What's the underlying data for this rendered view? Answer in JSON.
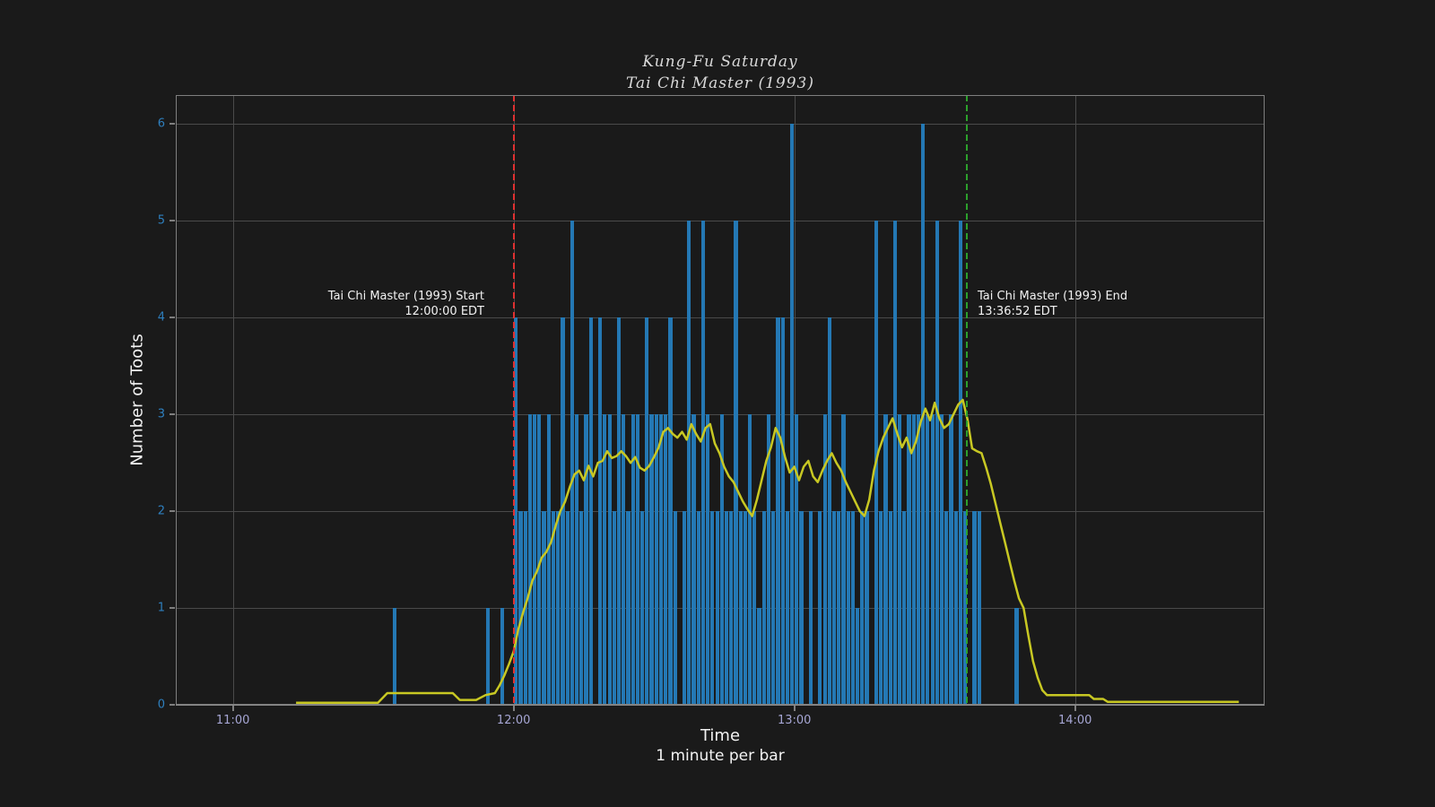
{
  "figure": {
    "title_line1": "Kung-Fu Saturday",
    "title_line2": "Tai Chi Master (1993)",
    "background": "#1a1a1a"
  },
  "colors": {
    "background": "#1a1a1a",
    "bar": "#2478b4",
    "avg_line": "#c8c823",
    "grid": "#4a4a4a",
    "spine": "#7f7f7f",
    "ytick": "#2e7fbe",
    "xtick": "#a6a6d4",
    "text": "#f2f2f2",
    "start_marker": "#e03131",
    "end_marker": "#2ca02c"
  },
  "chart_data": {
    "type": "bar",
    "title": "Kung-Fu Saturday\nTai Chi Master (1993)",
    "xlabel": "Time",
    "xlabel_sub": "1 minute per bar",
    "ylabel": "Number of Toots",
    "grid": true,
    "ylim": [
      0,
      6.3
    ],
    "y_ticks": [
      0,
      1,
      2,
      3,
      4,
      5,
      6
    ],
    "xlim_minutes_from_11": [
      -12.2,
      220.5
    ],
    "x_ticks": [
      {
        "minute": 0,
        "label": "11:00"
      },
      {
        "minute": 60,
        "label": "12:00"
      },
      {
        "minute": 120,
        "label": "13:00"
      },
      {
        "minute": 180,
        "label": "14:00"
      }
    ],
    "bars": {
      "name": "toots-per-minute",
      "interval_minutes": 1,
      "start_minute_from_11": 30,
      "start_time": "11:30",
      "values": [
        0,
        0,
        0,
        0,
        1,
        0,
        0,
        0,
        0,
        0,
        0,
        0,
        0,
        0,
        0,
        0,
        0,
        0,
        0,
        0,
        0,
        0,
        0,
        0,
        1,
        0,
        0,
        1,
        0,
        0,
        4,
        2,
        2,
        3,
        3,
        3,
        2,
        3,
        2,
        2,
        4,
        2,
        5,
        3,
        2,
        3,
        4,
        0,
        4,
        3,
        3,
        2,
        4,
        3,
        2,
        3,
        3,
        2,
        4,
        3,
        3,
        3,
        3,
        4,
        2,
        0,
        2,
        5,
        3,
        2,
        5,
        3,
        2,
        2,
        3,
        2,
        2,
        5,
        2,
        2,
        3,
        2,
        1,
        2,
        3,
        2,
        4,
        4,
        2,
        6,
        3,
        2,
        0,
        2,
        0,
        2,
        3,
        4,
        2,
        2,
        3,
        2,
        2,
        1,
        2,
        2,
        0,
        5,
        2,
        3,
        2,
        5,
        3,
        2,
        3,
        3,
        3,
        6,
        3,
        3,
        5,
        3,
        2,
        3,
        2,
        5,
        2,
        0,
        2,
        2,
        0,
        0,
        0,
        0,
        0,
        0,
        0,
        1
      ]
    },
    "avg_line": {
      "name": "rolling-average",
      "points_minute_value": [
        [
          13.5,
          0.02
        ],
        [
          31,
          0.02
        ],
        [
          33,
          0.12
        ],
        [
          47,
          0.12
        ],
        [
          48.5,
          0.05
        ],
        [
          52,
          0.05
        ],
        [
          54,
          0.1
        ],
        [
          56,
          0.12
        ],
        [
          57,
          0.2
        ],
        [
          58,
          0.3
        ],
        [
          59,
          0.42
        ],
        [
          60,
          0.55
        ],
        [
          61,
          0.78
        ],
        [
          62,
          0.95
        ],
        [
          63,
          1.1
        ],
        [
          64,
          1.28
        ],
        [
          65,
          1.38
        ],
        [
          66,
          1.52
        ],
        [
          67,
          1.58
        ],
        [
          68,
          1.68
        ],
        [
          69,
          1.85
        ],
        [
          70,
          2.0
        ],
        [
          71,
          2.1
        ],
        [
          72,
          2.25
        ],
        [
          73,
          2.38
        ],
        [
          74,
          2.42
        ],
        [
          75,
          2.32
        ],
        [
          76,
          2.47
        ],
        [
          77,
          2.36
        ],
        [
          78,
          2.5
        ],
        [
          79,
          2.52
        ],
        [
          80,
          2.62
        ],
        [
          81,
          2.55
        ],
        [
          82,
          2.57
        ],
        [
          83,
          2.62
        ],
        [
          84,
          2.57
        ],
        [
          85,
          2.5
        ],
        [
          86,
          2.56
        ],
        [
          87,
          2.45
        ],
        [
          88,
          2.42
        ],
        [
          89,
          2.47
        ],
        [
          90,
          2.56
        ],
        [
          91,
          2.66
        ],
        [
          92,
          2.82
        ],
        [
          93,
          2.86
        ],
        [
          94,
          2.8
        ],
        [
          95,
          2.76
        ],
        [
          96,
          2.82
        ],
        [
          97,
          2.74
        ],
        [
          98,
          2.9
        ],
        [
          99,
          2.8
        ],
        [
          100,
          2.72
        ],
        [
          101,
          2.86
        ],
        [
          102,
          2.9
        ],
        [
          103,
          2.7
        ],
        [
          104,
          2.6
        ],
        [
          105,
          2.46
        ],
        [
          106,
          2.36
        ],
        [
          107,
          2.3
        ],
        [
          108,
          2.2
        ],
        [
          109,
          2.1
        ],
        [
          110,
          2.02
        ],
        [
          111,
          1.95
        ],
        [
          112,
          2.12
        ],
        [
          113,
          2.32
        ],
        [
          114,
          2.52
        ],
        [
          115,
          2.66
        ],
        [
          116,
          2.86
        ],
        [
          117,
          2.76
        ],
        [
          118,
          2.56
        ],
        [
          119,
          2.4
        ],
        [
          120,
          2.46
        ],
        [
          121,
          2.32
        ],
        [
          122,
          2.46
        ],
        [
          123,
          2.52
        ],
        [
          124,
          2.36
        ],
        [
          125,
          2.3
        ],
        [
          126,
          2.42
        ],
        [
          127,
          2.52
        ],
        [
          128,
          2.6
        ],
        [
          129,
          2.5
        ],
        [
          130,
          2.42
        ],
        [
          131,
          2.3
        ],
        [
          132,
          2.2
        ],
        [
          133,
          2.1
        ],
        [
          134,
          2.0
        ],
        [
          135,
          1.95
        ],
        [
          136,
          2.12
        ],
        [
          137,
          2.42
        ],
        [
          138,
          2.62
        ],
        [
          139,
          2.76
        ],
        [
          140,
          2.86
        ],
        [
          141,
          2.96
        ],
        [
          142,
          2.8
        ],
        [
          143,
          2.66
        ],
        [
          144,
          2.76
        ],
        [
          145,
          2.6
        ],
        [
          146,
          2.72
        ],
        [
          147,
          2.92
        ],
        [
          148,
          3.06
        ],
        [
          149,
          2.94
        ],
        [
          150,
          3.12
        ],
        [
          151,
          2.96
        ],
        [
          152,
          2.86
        ],
        [
          153,
          2.9
        ],
        [
          154,
          3.0
        ],
        [
          155,
          3.1
        ],
        [
          156,
          3.15
        ],
        [
          157,
          2.95
        ],
        [
          158,
          2.65
        ],
        [
          159,
          2.62
        ],
        [
          160,
          2.6
        ],
        [
          161,
          2.45
        ],
        [
          162,
          2.28
        ],
        [
          163,
          2.08
        ],
        [
          164,
          1.88
        ],
        [
          165,
          1.68
        ],
        [
          166,
          1.48
        ],
        [
          167,
          1.28
        ],
        [
          168,
          1.1
        ],
        [
          169,
          1.0
        ],
        [
          170,
          0.72
        ],
        [
          171,
          0.45
        ],
        [
          172,
          0.28
        ],
        [
          173,
          0.15
        ],
        [
          174,
          0.1
        ],
        [
          183,
          0.1
        ],
        [
          184,
          0.06
        ],
        [
          186,
          0.06
        ],
        [
          187,
          0.03
        ],
        [
          215,
          0.03
        ]
      ]
    },
    "markers": [
      {
        "name": "start",
        "label_line1": "Tai Chi Master (1993) Start",
        "label_line2": "12:00:00 EDT",
        "minute_from_11": 60,
        "time": "12:00:00 EDT",
        "color": "#e03131",
        "label_side": "left"
      },
      {
        "name": "end",
        "label_line1": "Tai Chi Master (1993) End",
        "label_line2": "13:36:52 EDT",
        "minute_from_11": 156.8667,
        "time": "13:36:52 EDT",
        "color": "#2ca02c",
        "label_side": "right"
      }
    ]
  }
}
